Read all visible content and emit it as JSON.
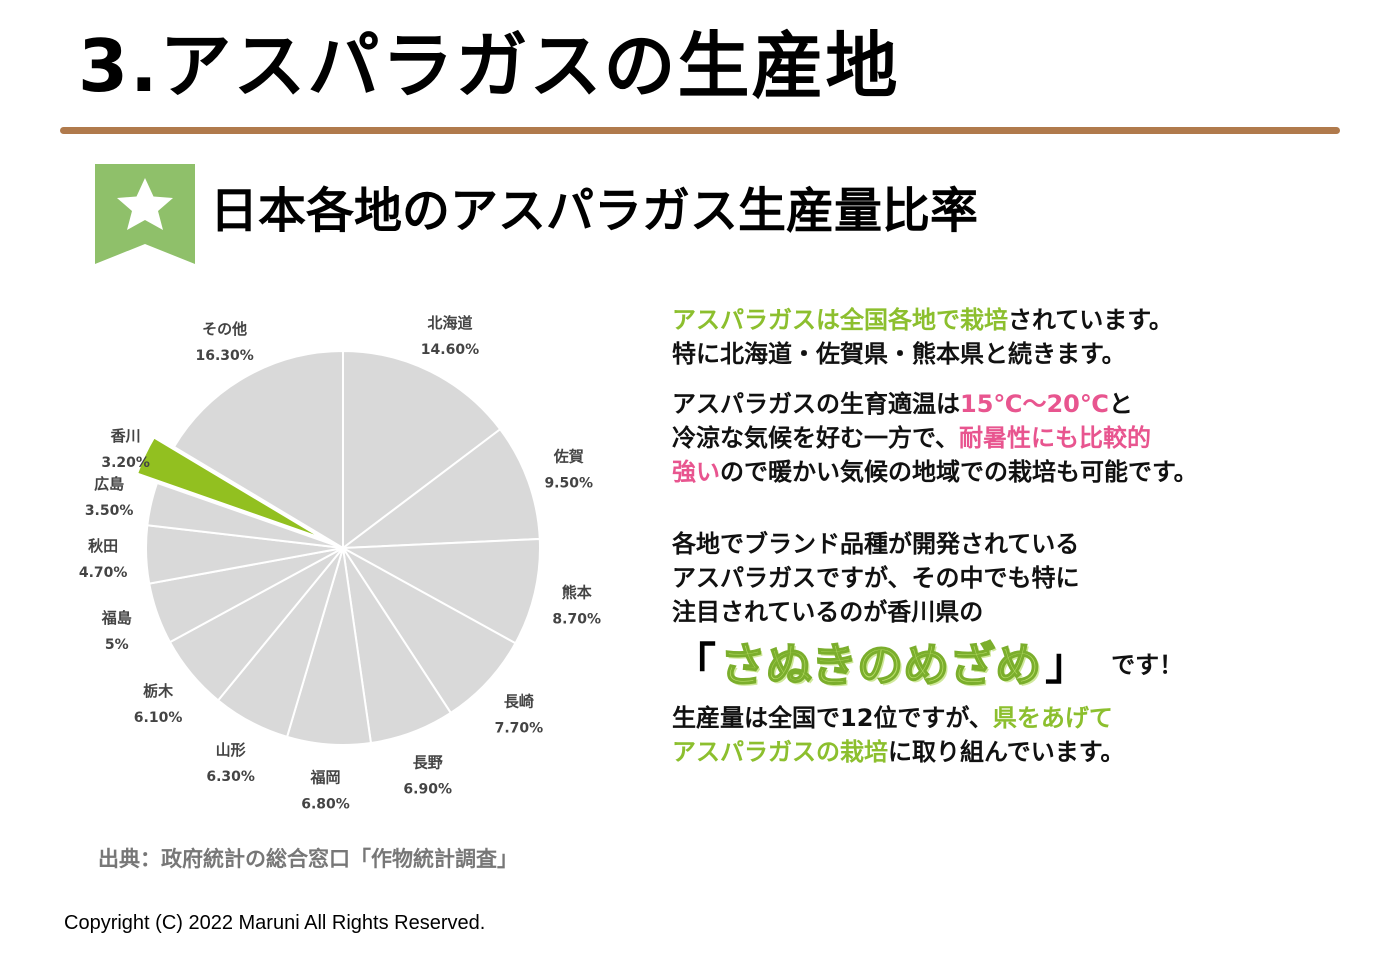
{
  "header": {
    "title": "3.アスパラガスの生産地",
    "section_title": "日本各地のアスパラガス生産量比率"
  },
  "chart_data": {
    "type": "pie",
    "slices": [
      {
        "label": "北海道",
        "value_label": "14.60%",
        "value": 14.6,
        "color": "#d9d9d9"
      },
      {
        "label": "佐賀",
        "value_label": "9.50%",
        "value": 9.5,
        "color": "#d9d9d9"
      },
      {
        "label": "熊本",
        "value_label": "8.70%",
        "value": 8.7,
        "color": "#d9d9d9"
      },
      {
        "label": "長崎",
        "value_label": "7.70%",
        "value": 7.7,
        "color": "#d9d9d9"
      },
      {
        "label": "長野",
        "value_label": "6.90%",
        "value": 6.9,
        "color": "#d9d9d9"
      },
      {
        "label": "福岡",
        "value_label": "6.80%",
        "value": 6.8,
        "color": "#d9d9d9"
      },
      {
        "label": "山形",
        "value_label": "6.30%",
        "value": 6.3,
        "color": "#d9d9d9"
      },
      {
        "label": "栃木",
        "value_label": "6.10%",
        "value": 6.1,
        "color": "#d9d9d9"
      },
      {
        "label": "福島",
        "value_label": "5%",
        "value": 5.0,
        "color": "#d9d9d9"
      },
      {
        "label": "秋田",
        "value_label": "4.70%",
        "value": 4.7,
        "color": "#d9d9d9"
      },
      {
        "label": "広島",
        "value_label": "3.50%",
        "value": 3.5,
        "color": "#d9d9d9"
      },
      {
        "label": "香川",
        "value_label": "3.20%",
        "value": 3.2,
        "color": "#92c020",
        "exploded": true
      },
      {
        "label": "その他",
        "value_label": "16.30%",
        "value": 16.3,
        "color": "#d9d9d9"
      }
    ],
    "source": "出典：政府統計の総合窓口「作物統計調査」"
  },
  "body": {
    "p1": {
      "l1_green": "アスパラガスは全国各地で栽培",
      "l1_rest": "されています。",
      "l2": "特に北海道・佐賀県・熊本県と続きます。"
    },
    "p2": {
      "l1_a": "アスパラガスの生育適温は",
      "l1_pink": "15℃～20℃",
      "l1_b": "と",
      "l2_a": "冷涼な気候を好む一方で、",
      "l2_pink": "耐暑性にも比較的",
      "l3_pink": "強い",
      "l3_b": "ので暖かい気候の地域での栽培も可能です。"
    },
    "p3": {
      "l1": "各地でブランド品種が開発されている",
      "l2": "アスパラガスですが、その中でも特に",
      "l3": "注目されているのが香川県の",
      "bracket_open": "「",
      "brand": "さぬきのめざめ",
      "bracket_close": "」",
      "desu": "です！",
      "l5_a": "生産量は全国で12位ですが、",
      "l5_green": "県をあげて",
      "l6_green": "アスパラガスの栽培",
      "l6_rest": "に取り組んでいます。"
    }
  },
  "footer": {
    "copyright": "Copyright (C) 2022 Maruni All Rights Reserved."
  }
}
